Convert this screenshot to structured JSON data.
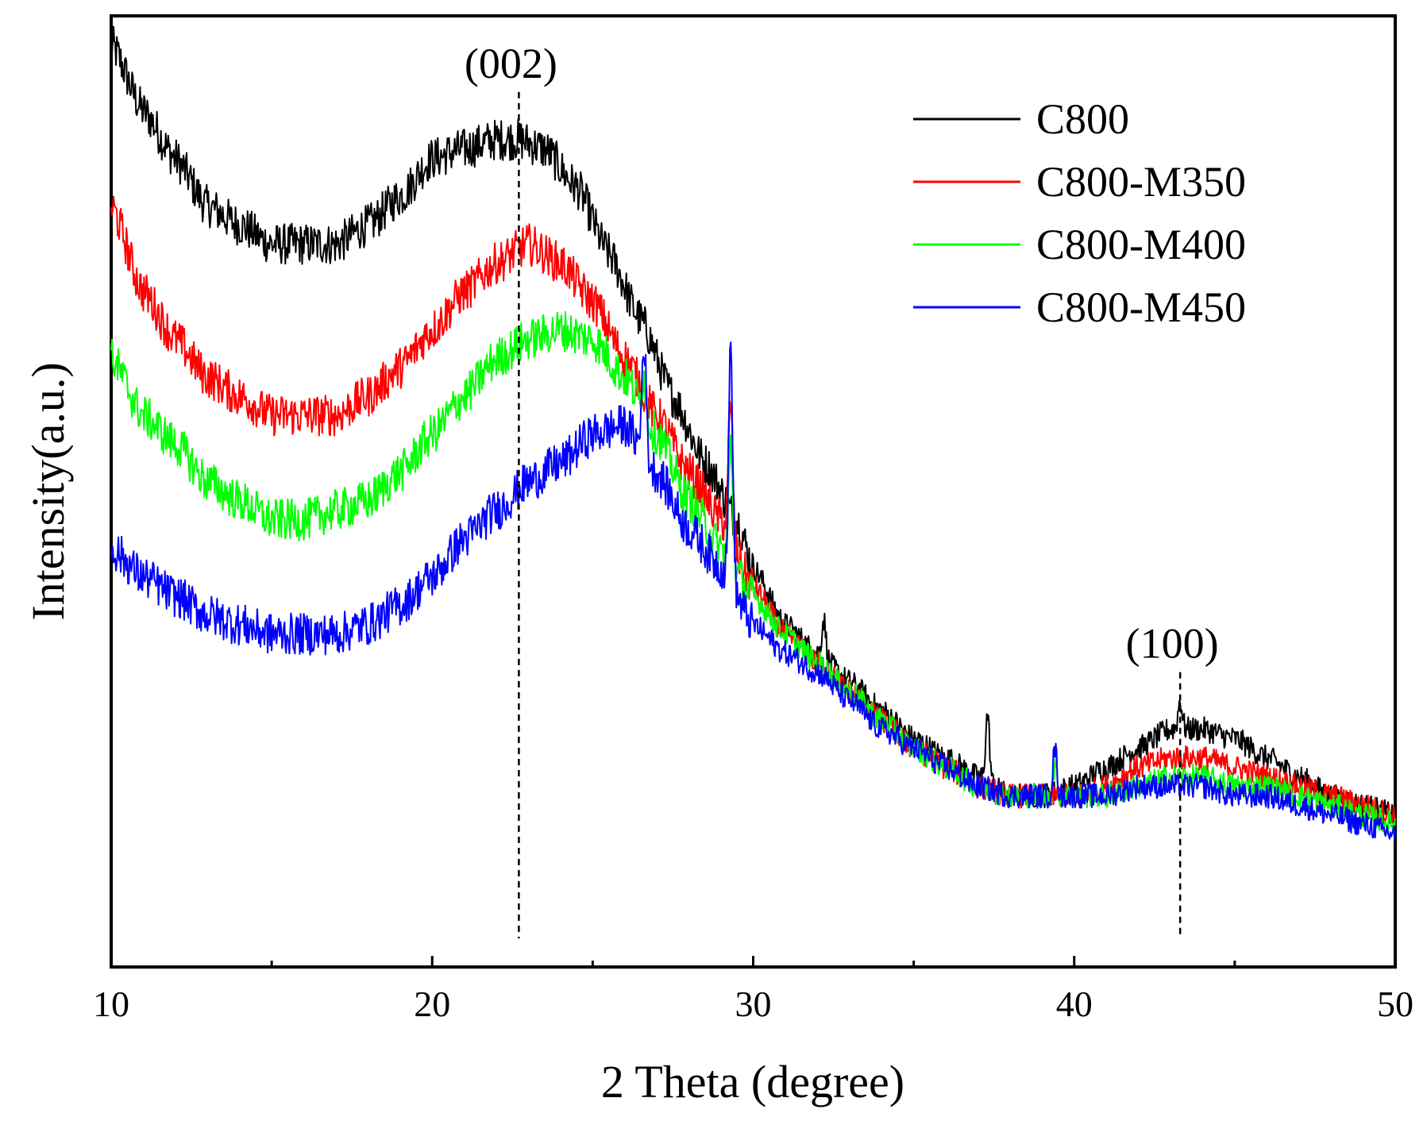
{
  "chart_data": {
    "type": "line",
    "title": "",
    "xlabel": "2 Theta (degree)",
    "ylabel": "Intensity(a.u.)",
    "xlim": [
      10,
      50
    ],
    "ylim": [
      0,
      100
    ],
    "x_ticks": [
      10,
      20,
      30,
      40,
      50
    ],
    "x_tick_labels": [
      "10",
      "20",
      "30",
      "40",
      "50"
    ],
    "y_ticks_shown": false,
    "legend_position": "top-right",
    "series": [
      {
        "name": "C800",
        "color": "#000000",
        "points": [
          [
            10,
            97
          ],
          [
            11,
            90
          ],
          [
            12,
            85
          ],
          [
            13,
            80
          ],
          [
            14,
            78
          ],
          [
            15,
            76
          ],
          [
            16,
            76
          ],
          [
            17,
            76
          ],
          [
            18,
            78
          ],
          [
            19,
            81
          ],
          [
            20,
            85
          ],
          [
            21,
            86
          ],
          [
            22,
            87
          ],
          [
            22.7,
            87
          ],
          [
            23.5,
            86
          ],
          [
            24.5,
            82
          ],
          [
            25.5,
            75
          ],
          [
            26.5,
            68
          ],
          [
            27.5,
            60
          ],
          [
            28.5,
            53
          ],
          [
            29.5,
            47
          ],
          [
            30,
            42
          ],
          [
            31,
            36
          ],
          [
            32,
            33
          ],
          [
            33,
            30
          ],
          [
            34,
            27
          ],
          [
            35,
            24
          ],
          [
            36,
            22
          ],
          [
            37,
            20
          ],
          [
            38,
            18
          ],
          [
            39,
            18
          ],
          [
            40,
            19
          ],
          [
            41,
            21
          ],
          [
            42,
            23
          ],
          [
            43,
            25
          ],
          [
            44,
            25
          ],
          [
            45,
            24
          ],
          [
            46,
            22
          ],
          [
            47,
            20
          ],
          [
            48,
            18
          ],
          [
            49,
            17
          ],
          [
            50,
            16
          ]
        ],
        "spikes": [
          [
            32.2,
            4
          ],
          [
            37.3,
            7
          ],
          [
            43.3,
            3
          ]
        ]
      },
      {
        "name": "C800-M350",
        "color": "#ff0000",
        "points": [
          [
            10,
            80
          ],
          [
            11,
            71
          ],
          [
            12,
            66
          ],
          [
            13,
            62
          ],
          [
            14,
            60
          ],
          [
            15,
            58
          ],
          [
            16,
            58
          ],
          [
            17,
            58
          ],
          [
            18,
            60
          ],
          [
            19,
            63
          ],
          [
            20,
            67
          ],
          [
            21,
            71
          ],
          [
            22,
            74
          ],
          [
            23,
            76
          ],
          [
            24,
            74
          ],
          [
            25,
            70
          ],
          [
            26,
            64
          ],
          [
            27,
            58
          ],
          [
            28,
            52
          ],
          [
            29,
            47
          ],
          [
            30,
            40
          ],
          [
            31,
            35
          ],
          [
            32,
            32
          ],
          [
            33,
            29
          ],
          [
            34,
            26
          ],
          [
            35,
            23
          ],
          [
            36,
            21
          ],
          [
            37,
            19
          ],
          [
            38,
            18
          ],
          [
            39,
            18
          ],
          [
            40,
            18
          ],
          [
            41,
            19
          ],
          [
            42,
            21
          ],
          [
            43,
            22
          ],
          [
            44,
            22
          ],
          [
            45,
            21
          ],
          [
            46,
            20
          ],
          [
            47,
            19
          ],
          [
            48,
            18
          ],
          [
            49,
            17
          ],
          [
            50,
            16
          ]
        ],
        "spikes": [
          [
            29.3,
            14
          ]
        ]
      },
      {
        "name": "C800-M400",
        "color": "#00ff00",
        "points": [
          [
            10,
            64
          ],
          [
            11,
            58
          ],
          [
            12,
            55
          ],
          [
            13,
            51
          ],
          [
            14,
            49
          ],
          [
            15,
            47
          ],
          [
            16,
            47
          ],
          [
            17,
            48
          ],
          [
            18,
            49
          ],
          [
            19,
            52
          ],
          [
            20,
            56
          ],
          [
            21,
            60
          ],
          [
            22,
            64
          ],
          [
            23,
            66
          ],
          [
            24,
            67
          ],
          [
            25,
            66
          ],
          [
            26,
            62
          ],
          [
            27,
            56
          ],
          [
            28,
            49
          ],
          [
            29,
            44
          ],
          [
            30,
            39
          ],
          [
            31,
            35
          ],
          [
            32,
            32
          ],
          [
            33,
            29
          ],
          [
            34,
            26
          ],
          [
            35,
            23
          ],
          [
            36,
            21
          ],
          [
            37,
            19
          ],
          [
            38,
            18
          ],
          [
            39,
            18
          ],
          [
            40,
            18
          ],
          [
            41,
            18
          ],
          [
            42,
            19
          ],
          [
            43,
            20
          ],
          [
            44,
            20
          ],
          [
            45,
            19
          ],
          [
            46,
            19
          ],
          [
            47,
            18
          ],
          [
            48,
            17
          ],
          [
            49,
            16
          ],
          [
            50,
            15
          ]
        ],
        "spikes": [
          [
            26.6,
            4
          ],
          [
            29.3,
            12
          ],
          [
            39.4,
            3
          ]
        ]
      },
      {
        "name": "C800-M450",
        "color": "#0000ff",
        "points": [
          [
            10,
            44
          ],
          [
            11,
            41
          ],
          [
            12,
            39
          ],
          [
            13,
            37
          ],
          [
            14,
            36
          ],
          [
            15,
            35
          ],
          [
            16,
            35
          ],
          [
            17,
            35
          ],
          [
            18,
            36
          ],
          [
            19,
            38
          ],
          [
            20,
            41
          ],
          [
            21,
            45
          ],
          [
            22,
            48
          ],
          [
            23,
            51
          ],
          [
            24,
            53
          ],
          [
            25,
            56
          ],
          [
            26,
            57
          ],
          [
            27,
            52
          ],
          [
            28,
            46
          ],
          [
            29,
            42
          ],
          [
            30,
            36
          ],
          [
            31,
            33
          ],
          [
            32,
            31
          ],
          [
            33,
            28
          ],
          [
            34,
            25
          ],
          [
            35,
            23
          ],
          [
            36,
            21
          ],
          [
            37,
            19
          ],
          [
            38,
            18
          ],
          [
            39,
            18
          ],
          [
            40,
            18
          ],
          [
            41,
            18
          ],
          [
            42,
            19
          ],
          [
            43,
            19
          ],
          [
            44,
            19
          ],
          [
            45,
            18
          ],
          [
            46,
            18
          ],
          [
            47,
            17
          ],
          [
            48,
            16
          ],
          [
            49,
            15
          ],
          [
            50,
            14
          ]
        ],
        "spikes": [
          [
            26.6,
            12
          ],
          [
            29.3,
            25
          ],
          [
            39.4,
            5
          ]
        ]
      }
    ],
    "annotations": [
      {
        "label": "(002)",
        "x": 22.7,
        "y_top": 92,
        "y_bottom": 3
      },
      {
        "label": "(100)",
        "x": 43.3,
        "y_top": 31,
        "y_bottom": 3
      }
    ]
  }
}
